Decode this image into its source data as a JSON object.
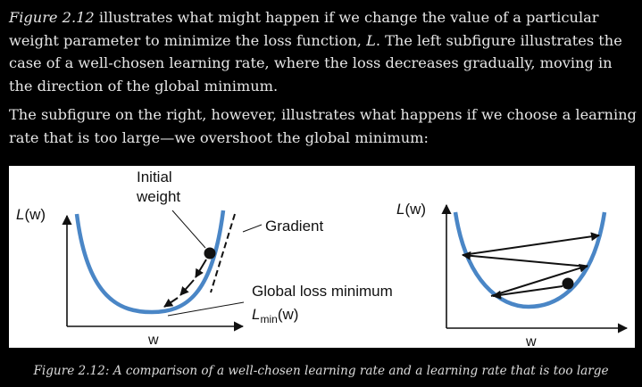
{
  "paragraph1": {
    "fig_ref": "Figure 2.12",
    "text_a": " illustrates what might happen if we change the value of a particular weight parameter to minimize the loss function, ",
    "var_L": "L",
    "text_b": ". The left subfigure illustrates the case of a well-chosen learning rate, where the loss decreases gradually, moving in the direction of the global minimum."
  },
  "paragraph2": {
    "text": "The subfigure on the right, however, illustrates what happens if we choose a learning rate that is too large—we overshoot the global minimum:"
  },
  "figure": {
    "left": {
      "y_axis_label_L": "L",
      "y_axis_label_rest": "(w)",
      "x_axis_label": "w",
      "initial_weight_line1": "Initial",
      "initial_weight_line2": "weight",
      "gradient_label": "Gradient",
      "global_min_label": "Global loss minimum",
      "lmin_L": "L",
      "lmin_sub": "min",
      "lmin_rest": "(w)"
    },
    "right": {
      "y_axis_label_L": "L",
      "y_axis_label_rest": "(w)",
      "x_axis_label": "w"
    },
    "colors": {
      "curve": "#4a86c6",
      "ink": "#111111"
    }
  },
  "caption": "Figure 2.12: A comparison of a well-chosen learning rate and a learning rate that is too large"
}
